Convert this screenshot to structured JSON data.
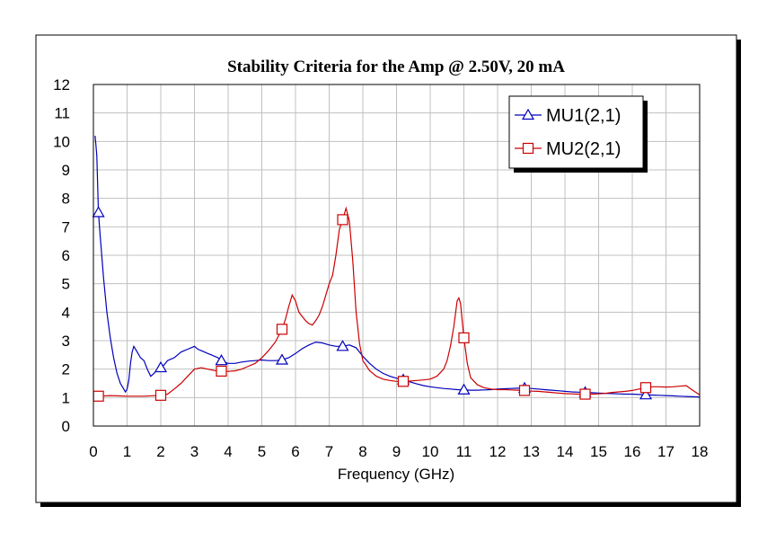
{
  "chart_data": {
    "type": "line",
    "title": "Stability Criteria for the Amp @ 2.50V, 20 mA",
    "xlabel": "Frequency (GHz)",
    "ylabel": "",
    "xlim": [
      0,
      18
    ],
    "ylim": [
      0,
      12
    ],
    "xticks": [
      "0",
      "1",
      "2",
      "3",
      "4",
      "5",
      "6",
      "7",
      "8",
      "9",
      "10",
      "11",
      "12",
      "13",
      "14",
      "15",
      "16",
      "17",
      "18"
    ],
    "yticks": [
      "0",
      "1",
      "2",
      "3",
      "4",
      "5",
      "6",
      "7",
      "8",
      "9",
      "10",
      "11",
      "12"
    ],
    "grid": true,
    "legend_position": "top-right",
    "series": [
      {
        "name": "MU1(2,1)",
        "color": "#0000bb",
        "marker": "triangle",
        "markers_at": [
          0.15,
          2.0,
          3.8,
          5.6,
          7.4,
          9.2,
          11.0,
          12.8,
          14.6,
          16.4
        ],
        "x": [
          0.05,
          0.1,
          0.15,
          0.2,
          0.3,
          0.4,
          0.5,
          0.6,
          0.7,
          0.8,
          0.9,
          0.95,
          1.0,
          1.05,
          1.1,
          1.15,
          1.2,
          1.3,
          1.4,
          1.5,
          1.6,
          1.7,
          1.8,
          1.9,
          2.0,
          2.1,
          2.2,
          2.3,
          2.4,
          2.5,
          2.6,
          2.7,
          2.8,
          2.9,
          3.0,
          3.1,
          3.2,
          3.3,
          3.4,
          3.5,
          3.6,
          3.7,
          3.8,
          3.9,
          4.0,
          4.2,
          4.4,
          4.6,
          4.8,
          5.0,
          5.2,
          5.4,
          5.6,
          5.8,
          6.0,
          6.2,
          6.4,
          6.6,
          6.8,
          7.0,
          7.2,
          7.4,
          7.6,
          7.8,
          8.0,
          8.2,
          8.4,
          8.6,
          8.8,
          9.0,
          9.2,
          9.4,
          9.6,
          9.8,
          10.0,
          10.2,
          10.4,
          10.6,
          10.8,
          11.0,
          11.2,
          11.4,
          11.6,
          11.8,
          12.0,
          12.2,
          12.4,
          12.6,
          12.8,
          13.0,
          13.2,
          13.4,
          13.6,
          13.8,
          14.0,
          14.2,
          14.4,
          14.6,
          14.8,
          15.0,
          15.2,
          15.4,
          15.6,
          15.8,
          16.0,
          16.2,
          16.4,
          16.6,
          16.8,
          17.0,
          17.2,
          17.4,
          17.6,
          17.8,
          18.0
        ],
        "y": [
          10.2,
          9.5,
          7.5,
          6.7,
          5.2,
          4.0,
          3.1,
          2.4,
          1.85,
          1.5,
          1.3,
          1.2,
          1.3,
          1.6,
          2.2,
          2.6,
          2.8,
          2.6,
          2.4,
          2.3,
          2.0,
          1.75,
          1.85,
          2.0,
          2.05,
          2.15,
          2.3,
          2.35,
          2.4,
          2.5,
          2.6,
          2.65,
          2.7,
          2.75,
          2.8,
          2.7,
          2.65,
          2.6,
          2.55,
          2.5,
          2.45,
          2.4,
          2.3,
          2.25,
          2.2,
          2.2,
          2.25,
          2.28,
          2.3,
          2.32,
          2.3,
          2.3,
          2.32,
          2.4,
          2.55,
          2.72,
          2.85,
          2.95,
          2.92,
          2.85,
          2.8,
          2.8,
          2.85,
          2.75,
          2.45,
          2.2,
          2.0,
          1.85,
          1.75,
          1.68,
          1.62,
          1.55,
          1.48,
          1.42,
          1.38,
          1.35,
          1.32,
          1.3,
          1.28,
          1.27,
          1.26,
          1.26,
          1.27,
          1.28,
          1.3,
          1.31,
          1.32,
          1.33,
          1.33,
          1.32,
          1.3,
          1.28,
          1.26,
          1.24,
          1.22,
          1.2,
          1.19,
          1.18,
          1.17,
          1.16,
          1.15,
          1.14,
          1.13,
          1.12,
          1.12,
          1.11,
          1.1,
          1.09,
          1.08,
          1.07,
          1.06,
          1.05,
          1.04,
          1.03,
          1.02
        ]
      },
      {
        "name": "MU2(2,1)",
        "color": "#cc0000",
        "marker": "square",
        "markers_at": [
          0.15,
          2.0,
          3.8,
          5.6,
          7.4,
          9.2,
          11.0,
          12.8,
          14.6,
          16.4
        ],
        "x": [
          0.05,
          0.15,
          0.5,
          1.0,
          1.5,
          2.0,
          2.2,
          2.4,
          2.6,
          2.8,
          3.0,
          3.2,
          3.4,
          3.6,
          3.8,
          4.0,
          4.2,
          4.4,
          4.6,
          4.8,
          5.0,
          5.2,
          5.4,
          5.6,
          5.7,
          5.8,
          5.9,
          6.0,
          6.1,
          6.2,
          6.3,
          6.4,
          6.5,
          6.6,
          6.7,
          6.8,
          6.9,
          7.0,
          7.1,
          7.2,
          7.3,
          7.4,
          7.5,
          7.6,
          7.7,
          7.8,
          7.9,
          8.0,
          8.2,
          8.4,
          8.6,
          8.8,
          9.0,
          9.2,
          9.4,
          9.6,
          9.8,
          10.0,
          10.2,
          10.4,
          10.5,
          10.6,
          10.7,
          10.8,
          10.85,
          10.9,
          10.95,
          11.0,
          11.1,
          11.2,
          11.4,
          11.6,
          11.8,
          12.0,
          12.2,
          12.4,
          12.6,
          12.8,
          13.0,
          13.2,
          13.4,
          13.6,
          13.8,
          14.0,
          14.2,
          14.4,
          14.6,
          14.8,
          15.0,
          15.2,
          15.4,
          15.6,
          15.8,
          16.0,
          16.2,
          16.4,
          16.6,
          16.8,
          17.0,
          17.2,
          17.4,
          17.6,
          17.8,
          18.0
        ],
        "y": [
          1.05,
          1.05,
          1.07,
          1.05,
          1.05,
          1.08,
          1.12,
          1.3,
          1.5,
          1.75,
          2.0,
          2.05,
          2.0,
          1.95,
          1.93,
          1.92,
          1.94,
          2.0,
          2.1,
          2.2,
          2.4,
          2.65,
          2.95,
          3.4,
          3.75,
          4.2,
          4.6,
          4.4,
          4.0,
          3.85,
          3.7,
          3.6,
          3.55,
          3.7,
          3.9,
          4.2,
          4.6,
          5.0,
          5.3,
          6.0,
          6.9,
          7.25,
          7.65,
          7.2,
          5.8,
          4.0,
          2.9,
          2.3,
          1.95,
          1.75,
          1.65,
          1.6,
          1.57,
          1.57,
          1.58,
          1.6,
          1.62,
          1.65,
          1.75,
          2.0,
          2.3,
          2.8,
          3.5,
          4.4,
          4.5,
          4.3,
          3.7,
          3.1,
          2.2,
          1.7,
          1.45,
          1.35,
          1.3,
          1.28,
          1.28,
          1.27,
          1.26,
          1.25,
          1.23,
          1.22,
          1.2,
          1.18,
          1.16,
          1.14,
          1.13,
          1.12,
          1.12,
          1.12,
          1.13,
          1.15,
          1.18,
          1.2,
          1.22,
          1.25,
          1.3,
          1.35,
          1.38,
          1.38,
          1.37,
          1.38,
          1.4,
          1.42,
          1.25,
          1.1
        ]
      }
    ]
  }
}
